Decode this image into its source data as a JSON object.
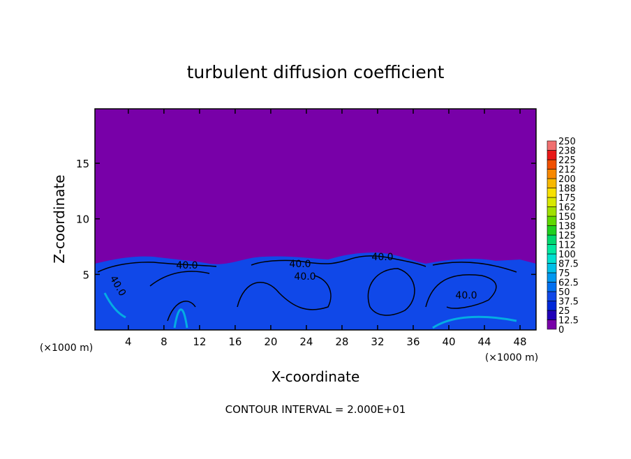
{
  "chart_data": {
    "type": "contour",
    "title": "turbulent diffusion coefficient",
    "x_label": "X-coordinate",
    "y_label": "Z-coordinate",
    "x_unit": "(×1000 m)",
    "y_unit": "(×1000 m)",
    "annotation": "CONTOUR INTERVAL = 2.000E+01",
    "xlim": [
      0.25,
      49.8
    ],
    "ylim": [
      0,
      19.9
    ],
    "xticks": [
      4,
      8,
      12,
      16,
      20,
      24,
      28,
      32,
      36,
      40,
      44,
      48
    ],
    "yticks": [
      5,
      10,
      15
    ],
    "contour_labels": [
      "40.0",
      "40.0",
      "40.0",
      "40.0",
      "40.0",
      "40.0"
    ],
    "colorbar": {
      "levels": [
        0,
        12.5,
        25,
        37.5,
        50,
        62.5,
        75,
        87.5,
        100,
        112,
        125,
        138,
        150,
        162,
        175,
        188,
        200,
        212,
        225,
        238,
        250
      ],
      "colors": [
        "#7800a8",
        "#2000b8",
        "#0028d8",
        "#1048e8",
        "#0070f0",
        "#0098f0",
        "#00c0e8",
        "#00e0d0",
        "#00e8a0",
        "#00d870",
        "#20d020",
        "#60d800",
        "#a0e000",
        "#d8e800",
        "#f8e000",
        "#f8b800",
        "#f88800",
        "#f05000",
        "#e81818",
        "#f07070"
      ]
    }
  }
}
